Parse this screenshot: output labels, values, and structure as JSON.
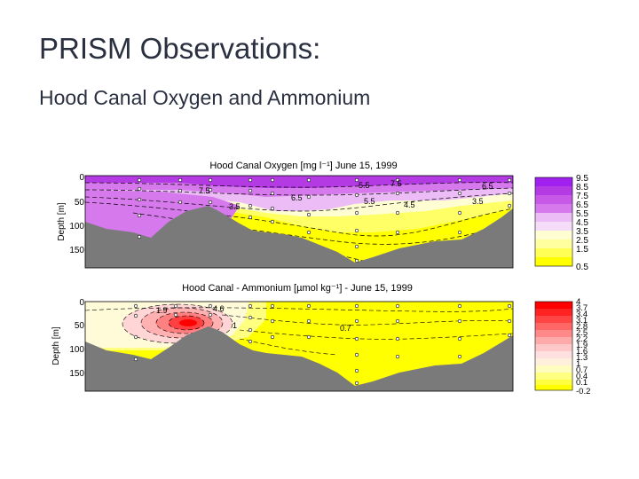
{
  "slide": {
    "title": "PRISM Observations:",
    "subtitle": "Hood Canal Oxygen and Ammonium"
  },
  "colors": {
    "text": "#2a3040",
    "bathymetry": "#7a7a7a",
    "oxygen_scale": [
      "#ffff00",
      "#ffff55",
      "#ffffa0",
      "#fefed2",
      "#f5dcf8",
      "#ecbcf6",
      "#e19af0",
      "#d679ec",
      "#c758e8",
      "#b43be4",
      "#a020f0"
    ],
    "ammonium_scale": [
      "#ffff00",
      "#ffff40",
      "#ffff80",
      "#fffcc0",
      "#fff0dd",
      "#ffe0e0",
      "#ffc8c8",
      "#ffaaaa",
      "#ff8888",
      "#ff6666",
      "#ff4444",
      "#ff2222",
      "#ff0000"
    ]
  },
  "panels": [
    {
      "title": "Hood Canal   Oxygen [mg l⁻¹]   June 15, 1999",
      "ylabel": "Depth [m]",
      "yticks": [
        "0",
        "50",
        "100",
        "150"
      ],
      "contour_labels": [
        "7.5",
        "6.5",
        "5.5",
        "4.5",
        "3.5",
        "5.5",
        "7.5",
        "6.5",
        "3.5"
      ],
      "colorbar_ticks": [
        "9.5",
        "8.5",
        "7.5",
        "6.5",
        "5.5",
        "4.5",
        "3.5",
        "2.5",
        "1.5",
        "0.5"
      ]
    },
    {
      "title": "Hood Canal - Ammonium [µmol kg⁻¹] - June 15, 1999",
      "ylabel": "Depth [m]",
      "yticks": [
        "0",
        "50",
        "100",
        "150"
      ],
      "contour_labels": [
        "1.9",
        "4.6",
        "1",
        "0.7"
      ],
      "colorbar_ticks": [
        "4",
        "3.7",
        "3.4",
        "3.1",
        "2.8",
        "2.5",
        "2.2",
        "1.9",
        "1.6",
        "1.3",
        "1",
        "0.7",
        "0.4",
        "0.1",
        "-0.2"
      ]
    }
  ]
}
